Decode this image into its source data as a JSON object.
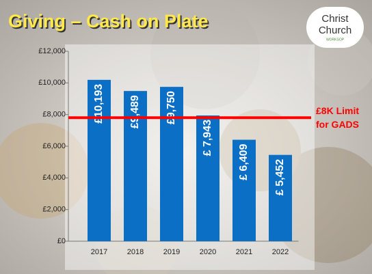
{
  "chart_data": {
    "type": "bar",
    "title": "Giving – Cash on Plate",
    "logo": [
      "Christ",
      "Church",
      "WORKSOP"
    ],
    "categories": [
      "2017",
      "2018",
      "2019",
      "2020",
      "2021",
      "2022"
    ],
    "values": [
      10193,
      9489,
      9750,
      7943,
      6409,
      5452
    ],
    "value_labels": [
      "£10,193",
      "£9,489",
      "£9,750",
      "£ 7,943",
      "£ 6,409",
      "£ 5,452"
    ],
    "color": "#0b6fc6",
    "ylim": [
      0,
      12000
    ],
    "yticks": [
      {
        "value": 0,
        "label": "£0"
      },
      {
        "value": 2000,
        "label": "£2,000"
      },
      {
        "value": 4000,
        "label": "£4,000"
      },
      {
        "value": 6000,
        "label": "£6,000"
      },
      {
        "value": 8000,
        "label": "£8,000"
      },
      {
        "value": 10000,
        "label": "£10,000"
      },
      {
        "value": 12000,
        "label": "£12,000"
      }
    ],
    "reference_line": {
      "value": 7800,
      "color": "#ff0000",
      "label": [
        "£8K Limit",
        "for GADS"
      ]
    }
  }
}
